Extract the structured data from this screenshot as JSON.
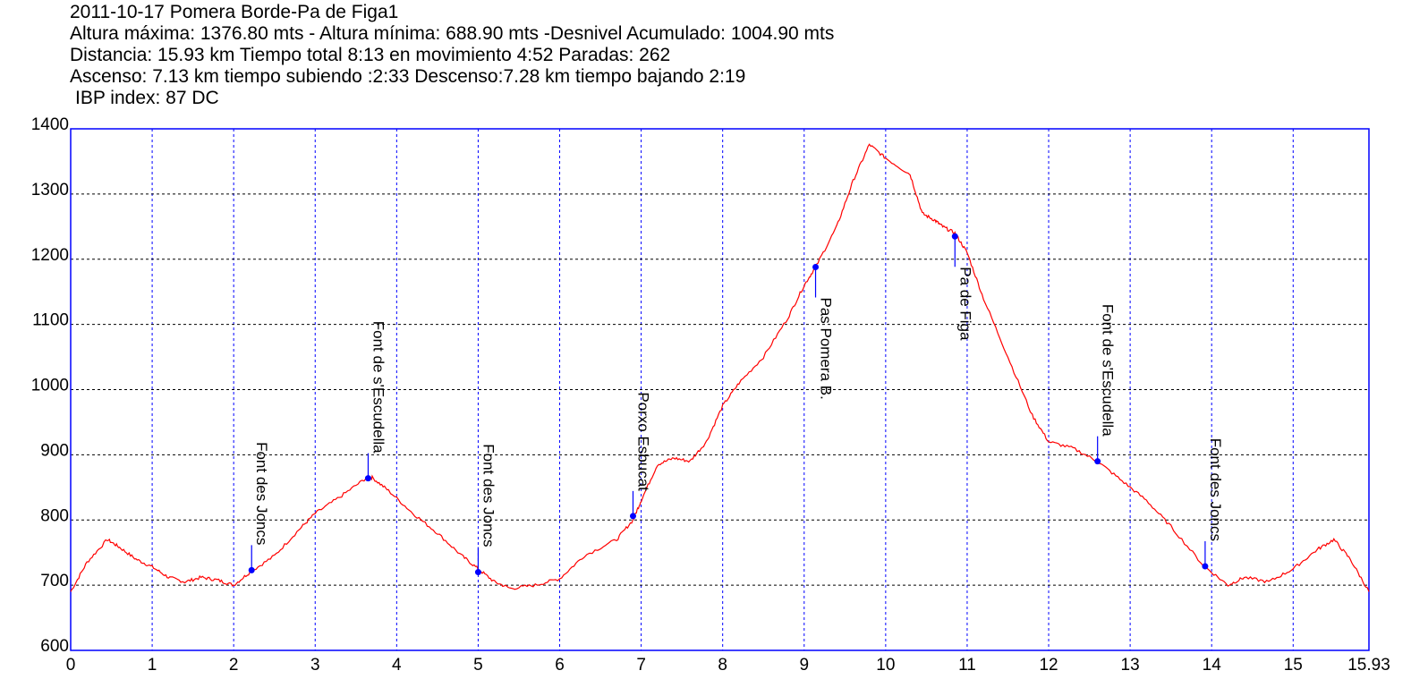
{
  "header": {
    "title": "2011-10-17 Pomera Borde-Pa de Figa1",
    "line2": "Altura máxima: 1376.80 mts - Altura mínima: 688.90 mts -Desnivel Acumulado: 1004.90 mts",
    "line3": "Distancia: 15.93 km  Tiempo total 8:13  en movimiento 4:52 Paradas: 262",
    "line4": "Ascenso: 7.13 km  tiempo subiendo :2:33  Descenso:7.28 km tiempo bajando 2:19",
    "line5": "IBP index: 87 DC"
  },
  "chart_data": {
    "type": "line",
    "xlim": [
      0,
      15.93
    ],
    "ylim": [
      600,
      1400
    ],
    "x_ticks": [
      "0",
      "1",
      "2",
      "3",
      "4",
      "5",
      "6",
      "7",
      "8",
      "9",
      "10",
      "11",
      "12",
      "13",
      "14",
      "15",
      "15.93"
    ],
    "x_tick_values": [
      0,
      1,
      2,
      3,
      4,
      5,
      6,
      7,
      8,
      9,
      10,
      11,
      12,
      13,
      14,
      15,
      15.93
    ],
    "y_ticks": [
      "600",
      "700",
      "800",
      "900",
      "1000",
      "1100",
      "1200",
      "1300",
      "1400"
    ],
    "y_tick_values": [
      600,
      700,
      800,
      900,
      1000,
      1100,
      1200,
      1300,
      1400
    ],
    "grid": true,
    "line_color": "#ff0000",
    "axes_color": "#0000ff",
    "series": [
      {
        "x": [
          0,
          0.2,
          0.45,
          0.6,
          0.8,
          1.0,
          1.2,
          1.4,
          1.6,
          1.8,
          2.0,
          2.2,
          2.5,
          2.8,
          3.0,
          3.3,
          3.6,
          3.7,
          3.9,
          4.2,
          4.5,
          4.8,
          5.0,
          5.2,
          5.4,
          5.7,
          6.0,
          6.3,
          6.7,
          6.9,
          7.0,
          7.2,
          7.4,
          7.6,
          7.8,
          8.0,
          8.2,
          8.5,
          8.8,
          9.0,
          9.15,
          9.4,
          9.6,
          9.8,
          10.0,
          10.3,
          10.45,
          10.6,
          10.7,
          10.85,
          11.0,
          11.2,
          11.5,
          11.8,
          12.0,
          12.3,
          12.6,
          12.9,
          13.2,
          13.5,
          13.9,
          14.2,
          14.4,
          14.7,
          15.0,
          15.3,
          15.5,
          15.7,
          15.93
        ],
        "y": [
          690,
          735,
          770,
          758,
          740,
          728,
          712,
          705,
          712,
          708,
          700,
          720,
          745,
          785,
          810,
          835,
          862,
          865,
          845,
          810,
          780,
          745,
          725,
          705,
          695,
          700,
          710,
          745,
          770,
          800,
          830,
          885,
          895,
          890,
          920,
          975,
          1010,
          1050,
          1110,
          1160,
          1190,
          1250,
          1320,
          1376,
          1355,
          1330,
          1270,
          1260,
          1250,
          1240,
          1210,
          1140,
          1050,
          960,
          920,
          910,
          890,
          860,
          830,
          790,
          730,
          700,
          712,
          705,
          725,
          755,
          770,
          740,
          690
        ]
      }
    ],
    "waypoints": [
      {
        "label": "Font des Joncs",
        "x": 2.22,
        "y": 723,
        "label_y": 950
      },
      {
        "label": "Font de s'Escudella",
        "x": 3.65,
        "y": 864,
        "label_y": 1100
      },
      {
        "label": "Font des Joncs",
        "x": 5.0,
        "y": 720,
        "label_y": 950
      },
      {
        "label": "Porxo Esbucat",
        "x": 6.9,
        "y": 806,
        "label_y": 1020
      },
      {
        "label": "Pas Pomera B.",
        "x": 9.14,
        "y": 1188,
        "label_y": 1130
      },
      {
        "label": "Pa de Figa",
        "x": 10.85,
        "y": 1235,
        "label_y": 1185
      },
      {
        "label": "Font de s'Escudella",
        "x": 12.6,
        "y": 890,
        "label_y": 1160
      },
      {
        "label": "Font des Joncs",
        "x": 13.92,
        "y": 729,
        "label_y": 960
      }
    ]
  }
}
